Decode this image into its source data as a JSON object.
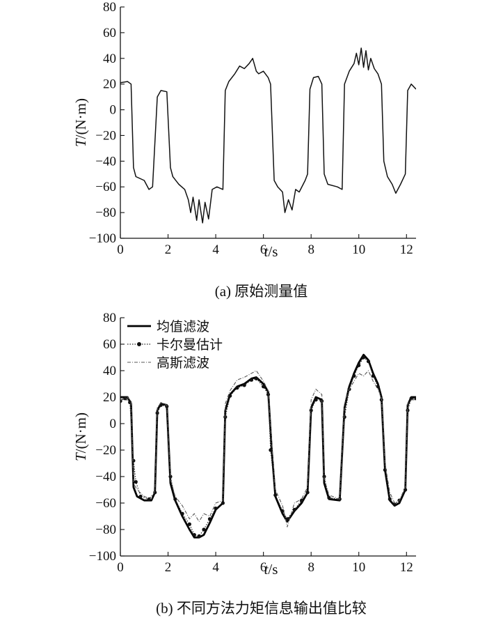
{
  "chart_data": [
    {
      "type": "line",
      "caption": "(a) 原始测量值",
      "ylabel": "T/(N·m)",
      "xlabel": "t/s",
      "xlim": [
        0,
        12.4
      ],
      "ylim": [
        -100,
        80
      ],
      "xticks": [
        0,
        2,
        4,
        6,
        8,
        10,
        12
      ],
      "yticks": [
        -100,
        -80,
        -60,
        -40,
        -20,
        0,
        20,
        40,
        60,
        80
      ],
      "grid": false,
      "legend": null,
      "series": [
        {
          "style": "solid",
          "color": "#111111",
          "points": [
            [
              0.0,
              21
            ],
            [
              0.3,
              22
            ],
            [
              0.45,
              20
            ],
            [
              0.55,
              -45
            ],
            [
              0.65,
              -52
            ],
            [
              1.0,
              -55
            ],
            [
              1.2,
              -62
            ],
            [
              1.35,
              -60
            ],
            [
              1.55,
              10
            ],
            [
              1.7,
              15
            ],
            [
              1.95,
              14
            ],
            [
              2.1,
              -45
            ],
            [
              2.2,
              -52
            ],
            [
              2.45,
              -58
            ],
            [
              2.7,
              -62
            ],
            [
              2.85,
              -70
            ],
            [
              2.95,
              -80
            ],
            [
              3.05,
              -68
            ],
            [
              3.2,
              -86
            ],
            [
              3.3,
              -70
            ],
            [
              3.45,
              -88
            ],
            [
              3.55,
              -72
            ],
            [
              3.7,
              -85
            ],
            [
              3.85,
              -62
            ],
            [
              4.05,
              -60
            ],
            [
              4.3,
              -62
            ],
            [
              4.4,
              15
            ],
            [
              4.55,
              22
            ],
            [
              4.8,
              28
            ],
            [
              5.0,
              34
            ],
            [
              5.2,
              32
            ],
            [
              5.4,
              36
            ],
            [
              5.55,
              40
            ],
            [
              5.7,
              30
            ],
            [
              5.8,
              28
            ],
            [
              6.0,
              30
            ],
            [
              6.2,
              25
            ],
            [
              6.3,
              20
            ],
            [
              6.45,
              -55
            ],
            [
              6.6,
              -60
            ],
            [
              6.8,
              -64
            ],
            [
              6.9,
              -80
            ],
            [
              7.05,
              -70
            ],
            [
              7.2,
              -78
            ],
            [
              7.35,
              -62
            ],
            [
              7.5,
              -64
            ],
            [
              7.75,
              -55
            ],
            [
              7.85,
              -50
            ],
            [
              7.95,
              16
            ],
            [
              8.1,
              25
            ],
            [
              8.3,
              26
            ],
            [
              8.45,
              20
            ],
            [
              8.55,
              -50
            ],
            [
              8.7,
              -58
            ],
            [
              9.1,
              -60
            ],
            [
              9.3,
              -62
            ],
            [
              9.4,
              20
            ],
            [
              9.6,
              30
            ],
            [
              9.8,
              36
            ],
            [
              9.9,
              44
            ],
            [
              10.0,
              35
            ],
            [
              10.1,
              48
            ],
            [
              10.2,
              33
            ],
            [
              10.3,
              46
            ],
            [
              10.4,
              31
            ],
            [
              10.5,
              40
            ],
            [
              10.65,
              32
            ],
            [
              10.8,
              28
            ],
            [
              10.95,
              20
            ],
            [
              11.05,
              -40
            ],
            [
              11.2,
              -52
            ],
            [
              11.4,
              -58
            ],
            [
              11.55,
              -65
            ],
            [
              11.75,
              -58
            ],
            [
              11.95,
              -50
            ],
            [
              12.05,
              15
            ],
            [
              12.2,
              20
            ],
            [
              12.4,
              16
            ]
          ]
        }
      ]
    },
    {
      "type": "line",
      "caption": "(b) 不同方法力矩信息输出值比较",
      "ylabel": "T/(N·m)",
      "xlabel": "t/s",
      "xlim": [
        0,
        12.4
      ],
      "ylim": [
        -100,
        80
      ],
      "xticks": [
        0,
        2,
        4,
        6,
        8,
        10,
        12
      ],
      "yticks": [
        -100,
        -80,
        -60,
        -40,
        -20,
        0,
        20,
        40,
        60,
        80
      ],
      "grid": false,
      "legend": "top-left",
      "series": [
        {
          "name": "均值滤波",
          "style": "thick",
          "color": "#000000",
          "points": [
            [
              0.0,
              20
            ],
            [
              0.3,
              20
            ],
            [
              0.45,
              15
            ],
            [
              0.55,
              -48
            ],
            [
              0.7,
              -55
            ],
            [
              1.0,
              -58
            ],
            [
              1.3,
              -58
            ],
            [
              1.45,
              -52
            ],
            [
              1.55,
              10
            ],
            [
              1.7,
              15
            ],
            [
              1.95,
              14
            ],
            [
              2.1,
              -45
            ],
            [
              2.3,
              -58
            ],
            [
              2.6,
              -70
            ],
            [
              2.9,
              -80
            ],
            [
              3.1,
              -86
            ],
            [
              3.3,
              -86
            ],
            [
              3.5,
              -84
            ],
            [
              3.75,
              -75
            ],
            [
              4.0,
              -65
            ],
            [
              4.3,
              -60
            ],
            [
              4.4,
              10
            ],
            [
              4.6,
              22
            ],
            [
              4.9,
              28
            ],
            [
              5.2,
              30
            ],
            [
              5.5,
              34
            ],
            [
              5.7,
              35
            ],
            [
              6.0,
              30
            ],
            [
              6.2,
              24
            ],
            [
              6.35,
              -20
            ],
            [
              6.5,
              -55
            ],
            [
              6.8,
              -68
            ],
            [
              7.0,
              -74
            ],
            [
              7.3,
              -66
            ],
            [
              7.6,
              -60
            ],
            [
              7.85,
              -52
            ],
            [
              8.0,
              12
            ],
            [
              8.2,
              20
            ],
            [
              8.45,
              18
            ],
            [
              8.55,
              -45
            ],
            [
              8.75,
              -57
            ],
            [
              9.2,
              -58
            ],
            [
              9.4,
              12
            ],
            [
              9.6,
              28
            ],
            [
              9.8,
              38
            ],
            [
              10.0,
              46
            ],
            [
              10.2,
              52
            ],
            [
              10.4,
              48
            ],
            [
              10.6,
              38
            ],
            [
              10.8,
              30
            ],
            [
              10.95,
              20
            ],
            [
              11.1,
              -35
            ],
            [
              11.3,
              -58
            ],
            [
              11.5,
              -62
            ],
            [
              11.7,
              -60
            ],
            [
              11.95,
              -50
            ],
            [
              12.05,
              14
            ],
            [
              12.2,
              20
            ],
            [
              12.4,
              20
            ]
          ]
        },
        {
          "name": "卡尔曼估计",
          "style": "dotted-markers",
          "color": "#222222",
          "points": [
            [
              0.0,
              17
            ],
            [
              0.2,
              19
            ],
            [
              0.4,
              16
            ],
            [
              0.55,
              -28
            ],
            [
              0.65,
              -44
            ],
            [
              0.85,
              -55
            ],
            [
              1.2,
              -57
            ],
            [
              1.45,
              -52
            ],
            [
              1.55,
              8
            ],
            [
              1.7,
              14
            ],
            [
              1.95,
              13
            ],
            [
              2.1,
              -40
            ],
            [
              2.3,
              -57
            ],
            [
              2.6,
              -68
            ],
            [
              2.9,
              -76
            ],
            [
              3.1,
              -84
            ],
            [
              3.3,
              -85
            ],
            [
              3.5,
              -80
            ],
            [
              3.75,
              -72
            ],
            [
              4.0,
              -64
            ],
            [
              4.3,
              -60
            ],
            [
              4.4,
              5
            ],
            [
              4.6,
              21
            ],
            [
              4.9,
              27
            ],
            [
              5.2,
              29
            ],
            [
              5.5,
              33
            ],
            [
              5.7,
              34
            ],
            [
              6.0,
              28
            ],
            [
              6.2,
              22
            ],
            [
              6.3,
              -20
            ],
            [
              6.5,
              -54
            ],
            [
              6.8,
              -66
            ],
            [
              7.0,
              -72
            ],
            [
              7.3,
              -65
            ],
            [
              7.6,
              -58
            ],
            [
              7.85,
              -52
            ],
            [
              8.0,
              10
            ],
            [
              8.2,
              18
            ],
            [
              8.45,
              17
            ],
            [
              8.55,
              -40
            ],
            [
              8.75,
              -56
            ],
            [
              9.2,
              -57
            ],
            [
              9.4,
              5
            ],
            [
              9.6,
              26
            ],
            [
              9.8,
              36
            ],
            [
              10.0,
              44
            ],
            [
              10.2,
              50
            ],
            [
              10.4,
              47
            ],
            [
              10.6,
              36
            ],
            [
              10.8,
              28
            ],
            [
              10.95,
              18
            ],
            [
              11.1,
              -35
            ],
            [
              11.3,
              -57
            ],
            [
              11.5,
              -61
            ],
            [
              11.7,
              -58
            ],
            [
              11.95,
              -50
            ],
            [
              12.05,
              10
            ],
            [
              12.2,
              19
            ],
            [
              12.4,
              19
            ]
          ]
        },
        {
          "name": "高斯滤波",
          "style": "dash-dot",
          "color": "#555555",
          "points": [
            [
              0.0,
              18
            ],
            [
              0.3,
              20
            ],
            [
              0.45,
              17
            ],
            [
              0.55,
              -45
            ],
            [
              0.7,
              -50
            ],
            [
              1.0,
              -55
            ],
            [
              1.3,
              -57
            ],
            [
              1.45,
              -50
            ],
            [
              1.55,
              12
            ],
            [
              1.7,
              16
            ],
            [
              1.95,
              14
            ],
            [
              2.1,
              -42
            ],
            [
              2.3,
              -55
            ],
            [
              2.6,
              -62
            ],
            [
              2.9,
              -72
            ],
            [
              3.1,
              -68
            ],
            [
              3.3,
              -74
            ],
            [
              3.5,
              -68
            ],
            [
              3.75,
              -70
            ],
            [
              4.0,
              -60
            ],
            [
              4.3,
              -58
            ],
            [
              4.4,
              15
            ],
            [
              4.6,
              25
            ],
            [
              4.9,
              33
            ],
            [
              5.2,
              35
            ],
            [
              5.5,
              38
            ],
            [
              5.7,
              40
            ],
            [
              6.0,
              32
            ],
            [
              6.2,
              25
            ],
            [
              6.35,
              -15
            ],
            [
              6.5,
              -50
            ],
            [
              6.8,
              -62
            ],
            [
              7.0,
              -78
            ],
            [
              7.3,
              -60
            ],
            [
              7.6,
              -57
            ],
            [
              7.85,
              -48
            ],
            [
              8.0,
              18
            ],
            [
              8.2,
              26
            ],
            [
              8.45,
              22
            ],
            [
              8.55,
              -42
            ],
            [
              8.75,
              -54
            ],
            [
              9.2,
              -57
            ],
            [
              9.4,
              15
            ],
            [
              9.6,
              26
            ],
            [
              9.8,
              32
            ],
            [
              10.0,
              38
            ],
            [
              10.2,
              36
            ],
            [
              10.4,
              40
            ],
            [
              10.6,
              32
            ],
            [
              10.8,
              26
            ],
            [
              10.95,
              20
            ],
            [
              11.1,
              -30
            ],
            [
              11.3,
              -52
            ],
            [
              11.5,
              -60
            ],
            [
              11.7,
              -58
            ],
            [
              11.95,
              -48
            ],
            [
              12.05,
              15
            ],
            [
              12.2,
              18
            ],
            [
              12.4,
              18
            ]
          ]
        }
      ]
    }
  ]
}
